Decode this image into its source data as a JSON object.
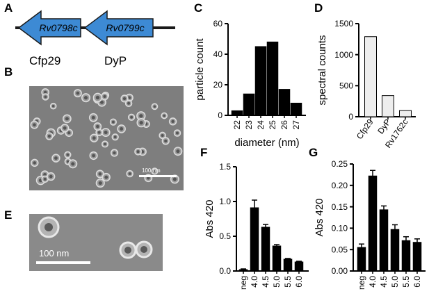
{
  "panels": {
    "A": {
      "letter": "A",
      "genes": [
        {
          "locus": "Rv0798c",
          "protein": "Cfp29"
        },
        {
          "locus": "Rv0799c",
          "protein": "DyP"
        }
      ],
      "arrow_color": "#3d8ad4"
    },
    "B": {
      "letter": "B",
      "scale_label": "100 nm"
    },
    "C": {
      "letter": "C"
    },
    "D": {
      "letter": "D"
    },
    "E": {
      "letter": "E",
      "scale_label": "100 nm"
    },
    "F": {
      "letter": "F"
    },
    "G": {
      "letter": "G"
    }
  },
  "chart_data": [
    {
      "panel": "C",
      "type": "bar",
      "categories": [
        "22",
        "23",
        "24",
        "25",
        "26",
        "27"
      ],
      "values": [
        3,
        14,
        45,
        48,
        17,
        8
      ],
      "xlabel": "diameter (nm)",
      "ylabel": "particle count",
      "ylim": [
        0,
        60
      ],
      "yticks": [
        "0",
        "20",
        "40",
        "60"
      ],
      "ytick_values": [
        0,
        20,
        40,
        60
      ],
      "bar_color": "#000000",
      "grid": false
    },
    {
      "panel": "D",
      "type": "bar",
      "categories": [
        "Cfp29",
        "DyP",
        "Rv1762c"
      ],
      "values": [
        1290,
        340,
        100
      ],
      "xlabel": "",
      "ylabel": "spectral counts",
      "ylim": [
        0,
        1500
      ],
      "yticks": [
        "0",
        "500",
        "1000",
        "1500"
      ],
      "ytick_values": [
        0,
        500,
        1000,
        1500
      ],
      "bar_color": "#eeeeee",
      "grid": false
    },
    {
      "panel": "F",
      "type": "bar",
      "categories": [
        "neg",
        "4.0",
        "4.5",
        "5.0",
        "5.5",
        "6.0"
      ],
      "values": [
        0.02,
        0.91,
        0.63,
        0.36,
        0.17,
        0.13
      ],
      "errors": [
        0.01,
        0.11,
        0.04,
        0.02,
        0.01,
        0.01
      ],
      "xlabel": "",
      "ylabel": "Abs 420",
      "ylim": [
        0,
        1.5
      ],
      "yticks": [
        "0.0",
        "0.5",
        "1.0",
        "1.5"
      ],
      "ytick_values": [
        0,
        0.5,
        1.0,
        1.5
      ],
      "bar_color": "#000000",
      "grid": false
    },
    {
      "panel": "G",
      "type": "bar",
      "categories": [
        "neg",
        "4.0",
        "4.5",
        "5.0",
        "5.5",
        "6.0"
      ],
      "values": [
        0.055,
        0.222,
        0.143,
        0.097,
        0.071,
        0.067
      ],
      "errors": [
        0.008,
        0.013,
        0.009,
        0.011,
        0.009,
        0.008
      ],
      "xlabel": "",
      "ylabel": "Abs 420",
      "ylim": [
        0,
        0.25
      ],
      "yticks": [
        "0.00",
        "0.05",
        "0.10",
        "0.15",
        "0.20",
        "0.25"
      ],
      "ytick_values": [
        0,
        0.05,
        0.1,
        0.15,
        0.2,
        0.25
      ],
      "bar_color": "#000000",
      "grid": false
    }
  ]
}
